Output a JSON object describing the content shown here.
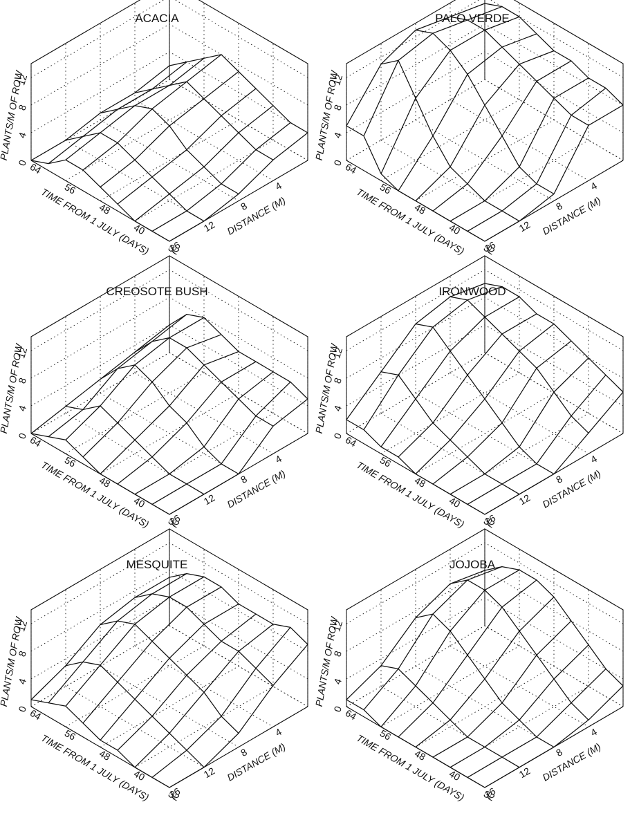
{
  "figure": {
    "axis_labels": {
      "z": "PLANTS/M OF ROW",
      "time": "TIME FROM 1 JULY (DAYS)",
      "distance": "DISTANCE (M)"
    }
  },
  "chart_data": [
    {
      "type": "surface",
      "title": "ACACIA",
      "xlabel": "TIME FROM 1 JULY (DAYS)",
      "ylabel": "DISTANCE (M)",
      "zlabel": "PLANTS/M OF ROW",
      "time_ticks": [
        "64",
        "56",
        "48",
        "40",
        "32"
      ],
      "distance_ticks": [
        "16",
        "12",
        "8",
        "4"
      ],
      "z_ticks": [
        "0",
        "4",
        "8",
        "12"
      ],
      "time_values": [
        64,
        60,
        56,
        52,
        48,
        44,
        40,
        36,
        32
      ],
      "distance_values": [
        16,
        12,
        8,
        4,
        0
      ],
      "zlim": [
        0,
        14
      ],
      "z": [
        [
          0,
          1,
          3,
          3,
          2,
          1,
          0,
          0,
          0
        ],
        [
          0,
          2,
          4,
          4,
          3,
          2,
          1,
          0,
          0
        ],
        [
          1,
          3,
          5,
          6,
          5,
          3,
          2,
          1,
          1
        ],
        [
          1,
          3,
          5,
          7,
          6,
          5,
          4,
          3,
          3
        ],
        [
          2,
          4,
          6,
          8,
          7,
          6,
          5,
          4,
          4
        ]
      ]
    },
    {
      "type": "surface",
      "title": "PALO VERDE",
      "xlabel": "TIME FROM 1 JULY (DAYS)",
      "ylabel": "DISTANCE (M)",
      "zlabel": "PLANTS/M OF ROW",
      "time_ticks": [
        "64",
        "56",
        "48",
        "40",
        "32"
      ],
      "distance_ticks": [
        "16",
        "12",
        "8",
        "4"
      ],
      "z_ticks": [
        "0",
        "4",
        "8",
        "12"
      ],
      "time_values": [
        64,
        60,
        56,
        52,
        48,
        44,
        40,
        36,
        32
      ],
      "distance_values": [
        16,
        12,
        8,
        4,
        0
      ],
      "zlim": [
        0,
        14
      ],
      "z": [
        [
          5,
          5,
          1,
          0,
          0,
          0,
          0,
          0,
          0
        ],
        [
          11,
          13,
          9,
          5,
          2,
          1,
          0,
          0,
          0
        ],
        [
          13,
          14,
          13,
          11,
          8,
          5,
          2,
          1,
          1
        ],
        [
          12,
          13,
          13,
          12,
          11,
          10,
          9,
          8,
          8
        ],
        [
          11,
          12,
          12,
          11,
          10,
          10,
          9,
          9,
          8
        ]
      ]
    },
    {
      "type": "surface",
      "title": "CREOSOTE BUSH",
      "xlabel": "TIME FROM 1 JULY (DAYS)",
      "ylabel": "DISTANCE (M)",
      "zlabel": "PLANTS/M OF ROW",
      "time_ticks": [
        "64",
        "56",
        "48",
        "40",
        "32"
      ],
      "distance_ticks": [
        "16",
        "12",
        "8",
        "4"
      ],
      "z_ticks": [
        "0",
        "4",
        "8",
        "12"
      ],
      "time_values": [
        64,
        60,
        56,
        52,
        48,
        44,
        40,
        36,
        32
      ],
      "distance_values": [
        16,
        12,
        8,
        4,
        0
      ],
      "zlim": [
        0,
        14
      ],
      "z": [
        [
          0,
          1,
          2,
          1,
          0,
          0,
          0,
          0,
          0
        ],
        [
          1,
          2,
          4,
          3,
          2,
          1,
          0,
          0,
          0
        ],
        [
          2,
          5,
          7,
          6,
          4,
          3,
          1,
          0,
          0
        ],
        [
          3,
          6,
          8,
          8,
          7,
          6,
          5,
          4,
          4
        ],
        [
          4,
          7,
          8,
          7,
          6,
          6,
          6,
          6,
          5
        ]
      ]
    },
    {
      "type": "surface",
      "title": "IRONWOOD",
      "xlabel": "TIME FROM 1 JULY (DAYS)",
      "ylabel": "DISTANCE (M)",
      "zlabel": "PLANTS/M OF ROW",
      "time_ticks": [
        "64",
        "56",
        "48",
        "40",
        "32"
      ],
      "distance_ticks": [
        "16",
        "12",
        "8",
        "4"
      ],
      "z_ticks": [
        "0",
        "4",
        "8",
        "12"
      ],
      "time_values": [
        64,
        60,
        56,
        52,
        48,
        44,
        40,
        36,
        32
      ],
      "distance_values": [
        16,
        12,
        8,
        4,
        0
      ],
      "zlim": [
        0,
        14
      ],
      "z": [
        [
          2,
          2,
          1,
          1,
          0,
          0,
          0,
          0,
          0
        ],
        [
          6,
          7,
          5,
          3,
          2,
          1,
          0,
          0,
          0
        ],
        [
          10,
          11,
          9,
          7,
          5,
          3,
          1,
          0,
          0
        ],
        [
          11,
          12,
          11,
          10,
          9,
          8,
          6,
          4,
          3
        ],
        [
          10,
          11,
          11,
          10,
          10,
          9,
          8,
          7,
          6
        ]
      ]
    },
    {
      "type": "surface",
      "title": "MESQUITE",
      "xlabel": "TIME FROM 1 JULY (DAYS)",
      "ylabel": "DISTANCE (M)",
      "zlabel": "PLANTS/M OF ROW",
      "time_ticks": [
        "64",
        "56",
        "48",
        "40",
        "32"
      ],
      "distance_ticks": [
        "16",
        "12",
        "8",
        "4"
      ],
      "z_ticks": [
        "0",
        "4",
        "8",
        "12"
      ],
      "time_values": [
        64,
        60,
        56,
        52,
        48,
        44,
        40,
        36,
        32
      ],
      "distance_values": [
        16,
        12,
        8,
        4,
        0
      ],
      "zlim": [
        0,
        14
      ],
      "z": [
        [
          1,
          2,
          3,
          2,
          1,
          1,
          0,
          0,
          0
        ],
        [
          3,
          5,
          6,
          5,
          4,
          3,
          2,
          1,
          0
        ],
        [
          6,
          8,
          9,
          8,
          7,
          6,
          5,
          3,
          2
        ],
        [
          7,
          9,
          10,
          10,
          9,
          8,
          8,
          7,
          6
        ],
        [
          7,
          9,
          10,
          10,
          9,
          9,
          9,
          10,
          9
        ]
      ]
    },
    {
      "type": "surface",
      "title": "JOJOBA",
      "xlabel": "TIME FROM 1 JULY (DAYS)",
      "ylabel": "DISTANCE (M)",
      "zlabel": "PLANTS/M OF ROW",
      "time_ticks": [
        "64",
        "56",
        "48",
        "40",
        "32"
      ],
      "distance_ticks": [
        "16",
        "12",
        "8",
        "4"
      ],
      "z_ticks": [
        "0",
        "4",
        "8",
        "12"
      ],
      "time_values": [
        64,
        60,
        56,
        52,
        48,
        44,
        40,
        36,
        32
      ],
      "distance_values": [
        16,
        12,
        8,
        4,
        0
      ],
      "zlim": [
        0,
        14
      ],
      "z": [
        [
          1,
          1,
          0,
          0,
          0,
          0,
          0,
          0,
          0
        ],
        [
          3,
          4,
          3,
          2,
          1,
          0,
          0,
          0,
          0
        ],
        [
          7,
          9,
          8,
          6,
          4,
          2,
          1,
          0,
          0
        ],
        [
          9,
          11,
          11,
          10,
          8,
          6,
          4,
          2,
          1
        ],
        [
          8,
          10,
          11,
          11,
          10,
          8,
          6,
          4,
          3
        ]
      ]
    }
  ]
}
